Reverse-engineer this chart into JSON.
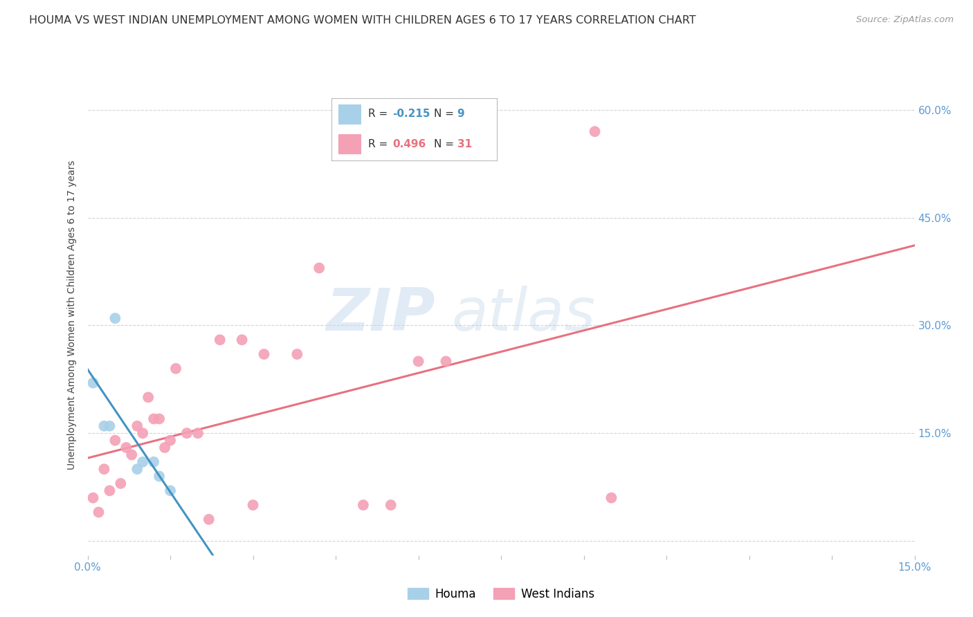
{
  "title": "HOUMA VS WEST INDIAN UNEMPLOYMENT AMONG WOMEN WITH CHILDREN AGES 6 TO 17 YEARS CORRELATION CHART",
  "source": "Source: ZipAtlas.com",
  "ylabel": "Unemployment Among Women with Children Ages 6 to 17 years",
  "xlim": [
    0.0,
    0.15
  ],
  "ylim": [
    -0.02,
    0.65
  ],
  "xticks": [
    0.0,
    0.015,
    0.03,
    0.045,
    0.06,
    0.075,
    0.09,
    0.105,
    0.12,
    0.135,
    0.15
  ],
  "xticklabels": [
    "0.0%",
    "",
    "",
    "",
    "",
    "",
    "",
    "",
    "",
    "",
    "15.0%"
  ],
  "yticks_right": [
    0.0,
    0.15,
    0.3,
    0.45,
    0.6
  ],
  "yticklabels_right": [
    "",
    "15.0%",
    "30.0%",
    "45.0%",
    "60.0%"
  ],
  "houma_x": [
    0.001,
    0.003,
    0.004,
    0.005,
    0.009,
    0.01,
    0.012,
    0.013,
    0.015
  ],
  "houma_y": [
    0.22,
    0.16,
    0.16,
    0.31,
    0.1,
    0.11,
    0.11,
    0.09,
    0.07
  ],
  "west_indian_x": [
    0.001,
    0.002,
    0.003,
    0.004,
    0.005,
    0.006,
    0.007,
    0.008,
    0.009,
    0.01,
    0.011,
    0.012,
    0.013,
    0.014,
    0.015,
    0.016,
    0.018,
    0.02,
    0.022,
    0.024,
    0.028,
    0.03,
    0.032,
    0.038,
    0.042,
    0.05,
    0.055,
    0.06,
    0.065,
    0.092,
    0.095
  ],
  "west_indian_y": [
    0.06,
    0.04,
    0.1,
    0.07,
    0.14,
    0.08,
    0.13,
    0.12,
    0.16,
    0.15,
    0.2,
    0.17,
    0.17,
    0.13,
    0.14,
    0.24,
    0.15,
    0.15,
    0.03,
    0.28,
    0.28,
    0.05,
    0.26,
    0.26,
    0.38,
    0.05,
    0.05,
    0.25,
    0.25,
    0.57,
    0.06
  ],
  "houma_color": "#a8d0e8",
  "west_indian_color": "#f4a0b5",
  "houma_line_color": "#4393c3",
  "houma_dash_color": "#a8d0e8",
  "west_indian_line_color": "#e8717f",
  "legend_R_houma": "-0.215",
  "legend_N_houma": "9",
  "legend_R_west_indian": "0.496",
  "legend_N_west_indian": "31",
  "watermark_zip": "ZIP",
  "watermark_atlas": "atlas",
  "background_color": "#ffffff",
  "grid_color": "#d3d3d3",
  "tick_color": "#5b9bd5",
  "title_fontsize": 11.5,
  "axis_label_fontsize": 10,
  "tick_fontsize": 11,
  "legend_fontsize": 12
}
